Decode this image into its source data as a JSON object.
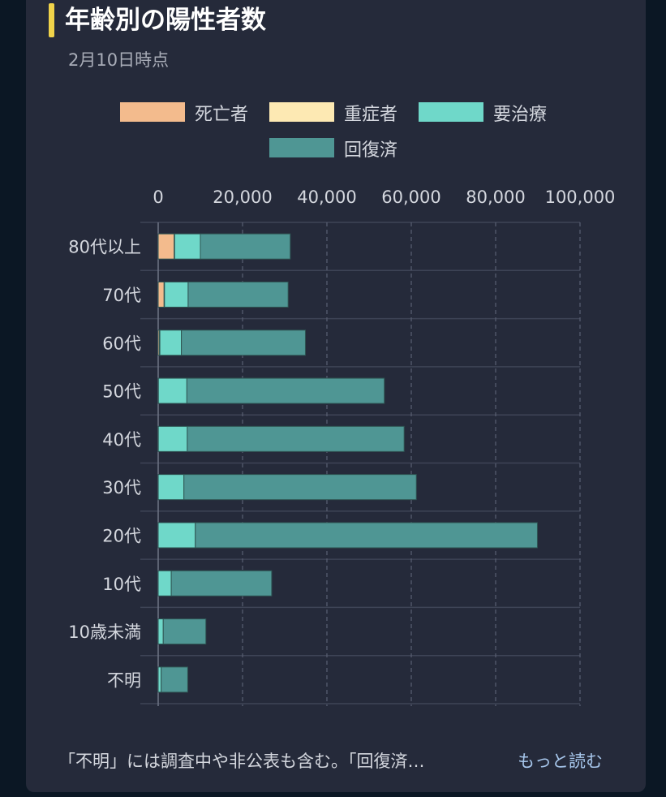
{
  "header": {
    "title": "年齢別の陽性者数",
    "subtitle": "2月10日時点"
  },
  "legend": [
    {
      "label": "死亡者",
      "color": "#f3bb8d"
    },
    {
      "label": "重症者",
      "color": "#fde9b3"
    },
    {
      "label": "要治療",
      "color": "#6fd8c9"
    },
    {
      "label": "回復済",
      "color": "#4f9694"
    }
  ],
  "footer": {
    "note": "「不明」には調査中や非公表も含む。「回復済…",
    "more_link": "もっと読む"
  },
  "chart_data": {
    "type": "bar",
    "orientation": "horizontal",
    "stacked": true,
    "categories": [
      "80代以上",
      "70代",
      "60代",
      "50代",
      "40代",
      "30代",
      "20代",
      "10代",
      "10歳未満",
      "不明"
    ],
    "series": [
      {
        "name": "死亡者",
        "color": "#f3bb8d",
        "values": [
          3800,
          1400,
          300,
          0,
          0,
          0,
          0,
          0,
          0,
          0
        ]
      },
      {
        "name": "重症者",
        "color": "#fde9b3",
        "values": [
          100,
          100,
          100,
          50,
          30,
          10,
          0,
          0,
          0,
          0
        ]
      },
      {
        "name": "要治療",
        "color": "#6fd8c9",
        "values": [
          6100,
          5600,
          5100,
          6750,
          6870,
          6090,
          8800,
          3100,
          1200,
          700
        ]
      },
      {
        "name": "回復済",
        "color": "#4f9694",
        "values": [
          21300,
          23700,
          29400,
          46800,
          51400,
          55100,
          81100,
          23800,
          10100,
          6300
        ]
      }
    ],
    "xlim": [
      0,
      100000
    ],
    "xticks": [
      0,
      20000,
      40000,
      60000,
      80000,
      100000
    ],
    "xtick_labels": [
      "0",
      "20,000",
      "40,000",
      "60,000",
      "80,000",
      "100,000"
    ],
    "grid": true,
    "legend_position": "top"
  }
}
